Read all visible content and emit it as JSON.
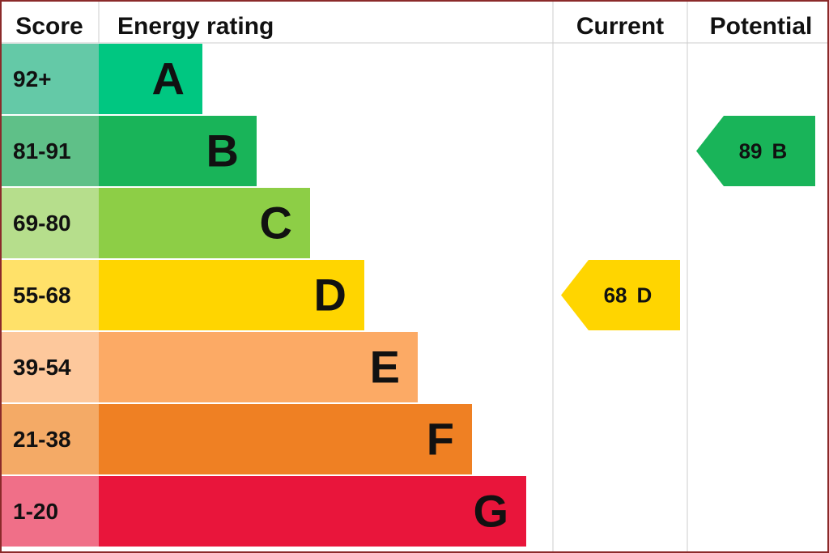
{
  "header": {
    "score": "Score",
    "rating": "Energy rating",
    "current": "Current",
    "potential": "Potential"
  },
  "rows": [
    {
      "score": "92+",
      "letter": "A",
      "color": "#00c781",
      "score_color": "#64c9a7"
    },
    {
      "score": "81-91",
      "letter": "B",
      "color": "#19b459",
      "score_color": "#5fc088"
    },
    {
      "score": "69-80",
      "letter": "C",
      "color": "#8dce46",
      "score_color": "#b6de8c"
    },
    {
      "score": "55-68",
      "letter": "D",
      "color": "#ffd500",
      "score_color": "#ffe169"
    },
    {
      "score": "39-54",
      "letter": "E",
      "color": "#fcaa65",
      "score_color": "#fdc89c"
    },
    {
      "score": "21-38",
      "letter": "F",
      "color": "#ef8023",
      "score_color": "#f4aa66"
    },
    {
      "score": "1-20",
      "letter": "G",
      "color": "#e9153b",
      "score_color": "#f06f88"
    }
  ],
  "current": {
    "score": 68,
    "rating": "D"
  },
  "potential": {
    "score": 89,
    "rating": "B"
  }
}
